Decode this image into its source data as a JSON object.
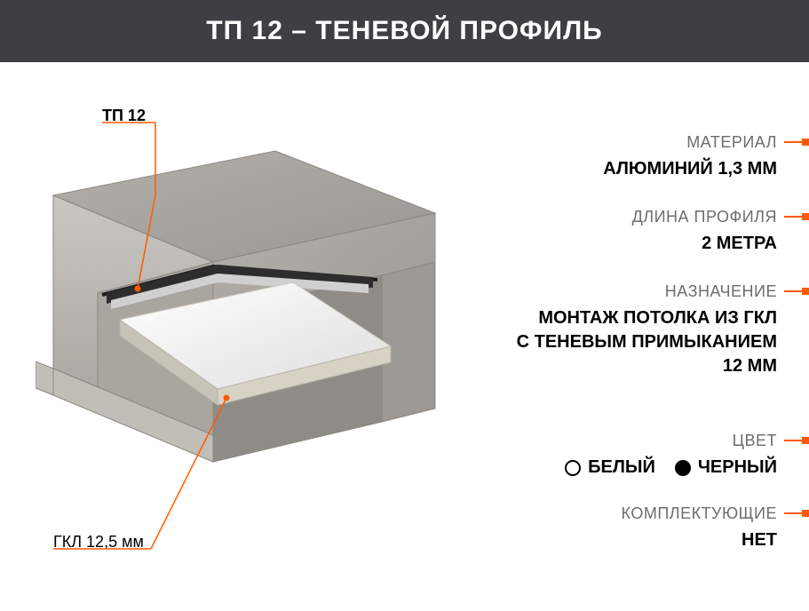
{
  "header": {
    "title": "ТП 12 – ТЕНЕВОЙ ПРОФИЛЬ",
    "bg_color": "#3c4042",
    "text_color": "#ffffff",
    "font_size": 30
  },
  "accent_color": "#ff5a00",
  "diagram": {
    "callout_top": "ТП 12",
    "callout_bottom": "ГКЛ 12,5 мм",
    "concrete_fill": "#b3b0ab",
    "concrete_stroke": "#8a8782",
    "panel_fill": "#f0f0f0",
    "panel_edge": "#d8d2c6",
    "panel_side": "#c8c3b8",
    "rail_dark": "#2d2d2d",
    "rail_light": "#d0d0d0",
    "shadow": "#1e1e1e",
    "leader_color": "#ff5a00"
  },
  "specs": [
    {
      "label": "МАТЕРИАЛ",
      "value": "АЛЮМИНИЙ 1,3 ММ"
    },
    {
      "label": "ДЛИНА ПРОФИЛЯ",
      "value": "2 МЕТРА"
    },
    {
      "label": "НАЗНАЧЕНИЕ",
      "value": "МОНТАЖ ПОТОЛКА ИЗ ГКЛ\nС ТЕНЕВЫМ ПРИМЫКАНИЕМ\n12 ММ"
    },
    {
      "label": "ЦВЕТ",
      "colors": [
        {
          "name": "БЕЛЫЙ",
          "hex": "#ffffff"
        },
        {
          "name": "ЧЕРНЫЙ",
          "hex": "#000000"
        }
      ]
    },
    {
      "label": "КОМПЛЕКТУЮЩИЕ",
      "value": "НЕТ"
    }
  ]
}
